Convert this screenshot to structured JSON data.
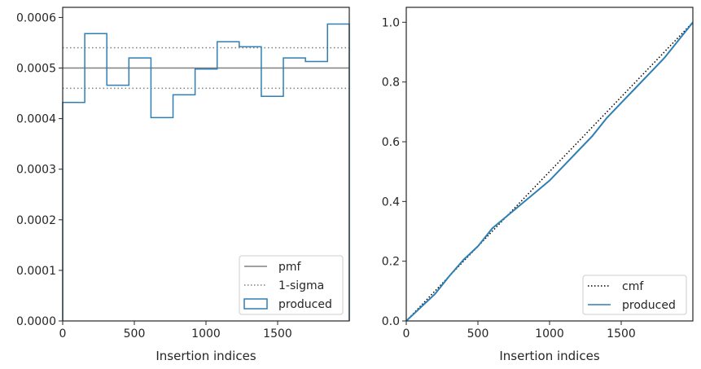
{
  "chart_data": [
    {
      "type": "line",
      "panel": "left",
      "xlabel": "Insertion indices",
      "ylabel": "",
      "xlim": [
        0,
        2000
      ],
      "ylim": [
        0,
        0.00062
      ],
      "xticks": [
        0,
        500,
        1000,
        1500
      ],
      "xtick_labels": [
        "0",
        "500",
        "1000",
        "1500"
      ],
      "yticks": [
        0,
        0.0001,
        0.0002,
        0.0003,
        0.0004,
        0.0005,
        0.0006
      ],
      "ytick_labels": [
        "0.0000",
        "0.0001",
        "0.0002",
        "0.0003",
        "0.0004",
        "0.0005",
        "0.0006"
      ],
      "legend_position": "lower-right",
      "series": [
        {
          "name": "pmf",
          "kind": "hline",
          "y": 0.0005,
          "color": "#808080",
          "style": "solid"
        },
        {
          "name": "1-sigma",
          "kind": "hlines",
          "y": [
            0.00054,
            0.00046
          ],
          "color": "#808080",
          "style": "dotted"
        },
        {
          "name": "produced",
          "kind": "step",
          "color": "#2f7fb4",
          "bin_edges": [
            0,
            154,
            308,
            462,
            616,
            770,
            924,
            1078,
            1232,
            1386,
            1540,
            1694,
            1848,
            2000
          ],
          "values": [
            0.000432,
            0.000568,
            0.000466,
            0.00052,
            0.000402,
            0.000447,
            0.000498,
            0.000552,
            0.000542,
            0.000444,
            0.00052,
            0.000513,
            0.000587
          ]
        }
      ]
    },
    {
      "type": "line",
      "panel": "right",
      "xlabel": "Insertion indices",
      "ylabel": "",
      "xlim": [
        0,
        2000
      ],
      "ylim": [
        0,
        1.05
      ],
      "xticks": [
        0,
        500,
        1000,
        1500
      ],
      "xtick_labels": [
        "0",
        "500",
        "1000",
        "1500"
      ],
      "yticks": [
        0,
        0.2,
        0.4,
        0.6,
        0.8,
        1.0
      ],
      "ytick_labels": [
        "0.0",
        "0.2",
        "0.4",
        "0.6",
        "0.8",
        "1.0"
      ],
      "legend_position": "lower-right",
      "series": [
        {
          "name": "cmf",
          "kind": "line",
          "x": [
            0,
            2000
          ],
          "y": [
            0,
            1.0
          ],
          "color": "#000000",
          "style": "dotted"
        },
        {
          "name": "produced",
          "kind": "line",
          "color": "#2f7fb4",
          "x": [
            0,
            100,
            200,
            300,
            400,
            500,
            600,
            700,
            800,
            900,
            1000,
            1100,
            1200,
            1300,
            1400,
            1500,
            1600,
            1700,
            1800,
            1900,
            2000
          ],
          "y": [
            0,
            0.045,
            0.09,
            0.15,
            0.205,
            0.25,
            0.31,
            0.35,
            0.39,
            0.43,
            0.47,
            0.52,
            0.57,
            0.62,
            0.68,
            0.73,
            0.78,
            0.83,
            0.88,
            0.94,
            1.0
          ]
        }
      ]
    }
  ]
}
